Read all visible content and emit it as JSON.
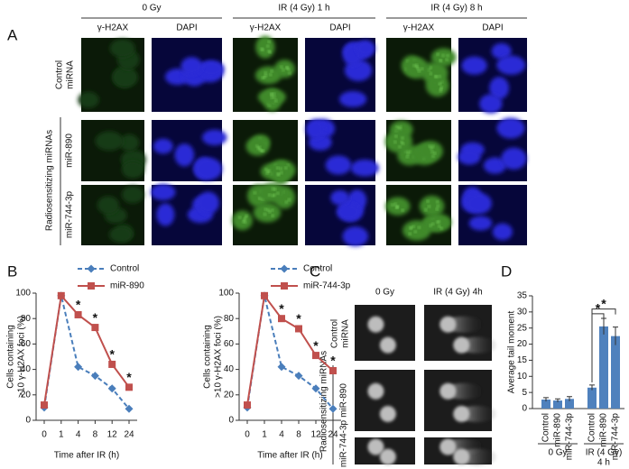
{
  "panel_labels": [
    "A",
    "B",
    "C",
    "D"
  ],
  "panel_a": {
    "columns": [
      {
        "title": "0 Gy",
        "channels": [
          "γ-H2AX",
          "DAPI"
        ]
      },
      {
        "title": "IR (4 Gy) 1 h",
        "channels": [
          "γ-H2AX",
          "DAPI"
        ]
      },
      {
        "title": "IR (4 Gy) 8 h",
        "channels": [
          "γ-H2AX",
          "DAPI"
        ]
      }
    ],
    "rows": [
      {
        "label": [
          "Control",
          "miRNA"
        ]
      },
      {
        "label": [
          "miR-890"
        ]
      },
      {
        "label": [
          "miR-744-3p"
        ]
      }
    ],
    "group_label": "Radiosensitizing miRNAs"
  },
  "panel_c": {
    "columns": [
      "0 Gy",
      "IR (4 Gy) 4h"
    ],
    "rows": [
      {
        "label": [
          "Control",
          "miRNA"
        ]
      },
      {
        "label": [
          "miR-890"
        ]
      },
      {
        "label": [
          "miR-744-3p"
        ]
      }
    ],
    "group_label": "Radiosensitizing miRNAs"
  },
  "chart_data": [
    {
      "type": "line",
      "ylabel": [
        "Cells containing",
        ">10 γ-H2AX foci (%)"
      ],
      "xlabel": "Time after IR (h)",
      "categories": [
        "0",
        "1",
        "4",
        "8",
        "12",
        "24"
      ],
      "series": [
        {
          "name": "Control",
          "color": "#4a7ebb",
          "dash": true,
          "marker": "diamond",
          "values": [
            10,
            98,
            42,
            35,
            25,
            9
          ]
        },
        {
          "name": "miR-890",
          "color": "#c0504d",
          "dash": false,
          "marker": "square",
          "values": [
            12,
            98,
            83,
            73,
            44,
            26
          ]
        }
      ],
      "significance": [
        null,
        null,
        "*",
        "*",
        "*",
        "*"
      ],
      "ylim": [
        0,
        100
      ],
      "yticks": [
        0,
        20,
        40,
        60,
        80,
        100
      ]
    },
    {
      "type": "line",
      "ylabel": [
        "Cells containing",
        ">10 γ-H2AX foci (%)"
      ],
      "xlabel": "Time after IR (h)",
      "categories": [
        "0",
        "1",
        "4",
        "8",
        "12",
        "24"
      ],
      "series": [
        {
          "name": "Control",
          "color": "#4a7ebb",
          "dash": true,
          "marker": "diamond",
          "values": [
            10,
            98,
            42,
            35,
            25,
            9
          ]
        },
        {
          "name": "miR-744-3p",
          "color": "#c0504d",
          "dash": false,
          "marker": "square",
          "values": [
            12,
            98,
            80,
            72,
            51,
            39
          ]
        }
      ],
      "significance": [
        null,
        null,
        "*",
        "*",
        "*",
        "*"
      ],
      "ylim": [
        0,
        100
      ],
      "yticks": [
        0,
        20,
        40,
        60,
        80,
        100
      ]
    },
    {
      "type": "bar",
      "ylabel": "Average tail moment",
      "categories": [
        "Control",
        "miR-890",
        "miR-744-3p",
        "Control",
        "miR-890",
        "miR-744-3p"
      ],
      "values": [
        2.8,
        2.5,
        3,
        6.5,
        25.5,
        22.5
      ],
      "errors": [
        0.6,
        0.5,
        0.7,
        0.8,
        2.5,
        2.8
      ],
      "color": "#4f81bd",
      "groups": [
        {
          "name": [
            "0 Gy"
          ],
          "size": 3
        },
        {
          "name": [
            "IR (4 Gy)",
            "4 h"
          ],
          "size": 3
        }
      ],
      "comparisons": [
        {
          "from": 3,
          "to": 4,
          "text": "*"
        },
        {
          "from": 3,
          "to": 5,
          "text": "*"
        }
      ],
      "ylim": [
        0,
        35
      ],
      "yticks": [
        0,
        5,
        10,
        15,
        20,
        25,
        30,
        35
      ]
    }
  ]
}
